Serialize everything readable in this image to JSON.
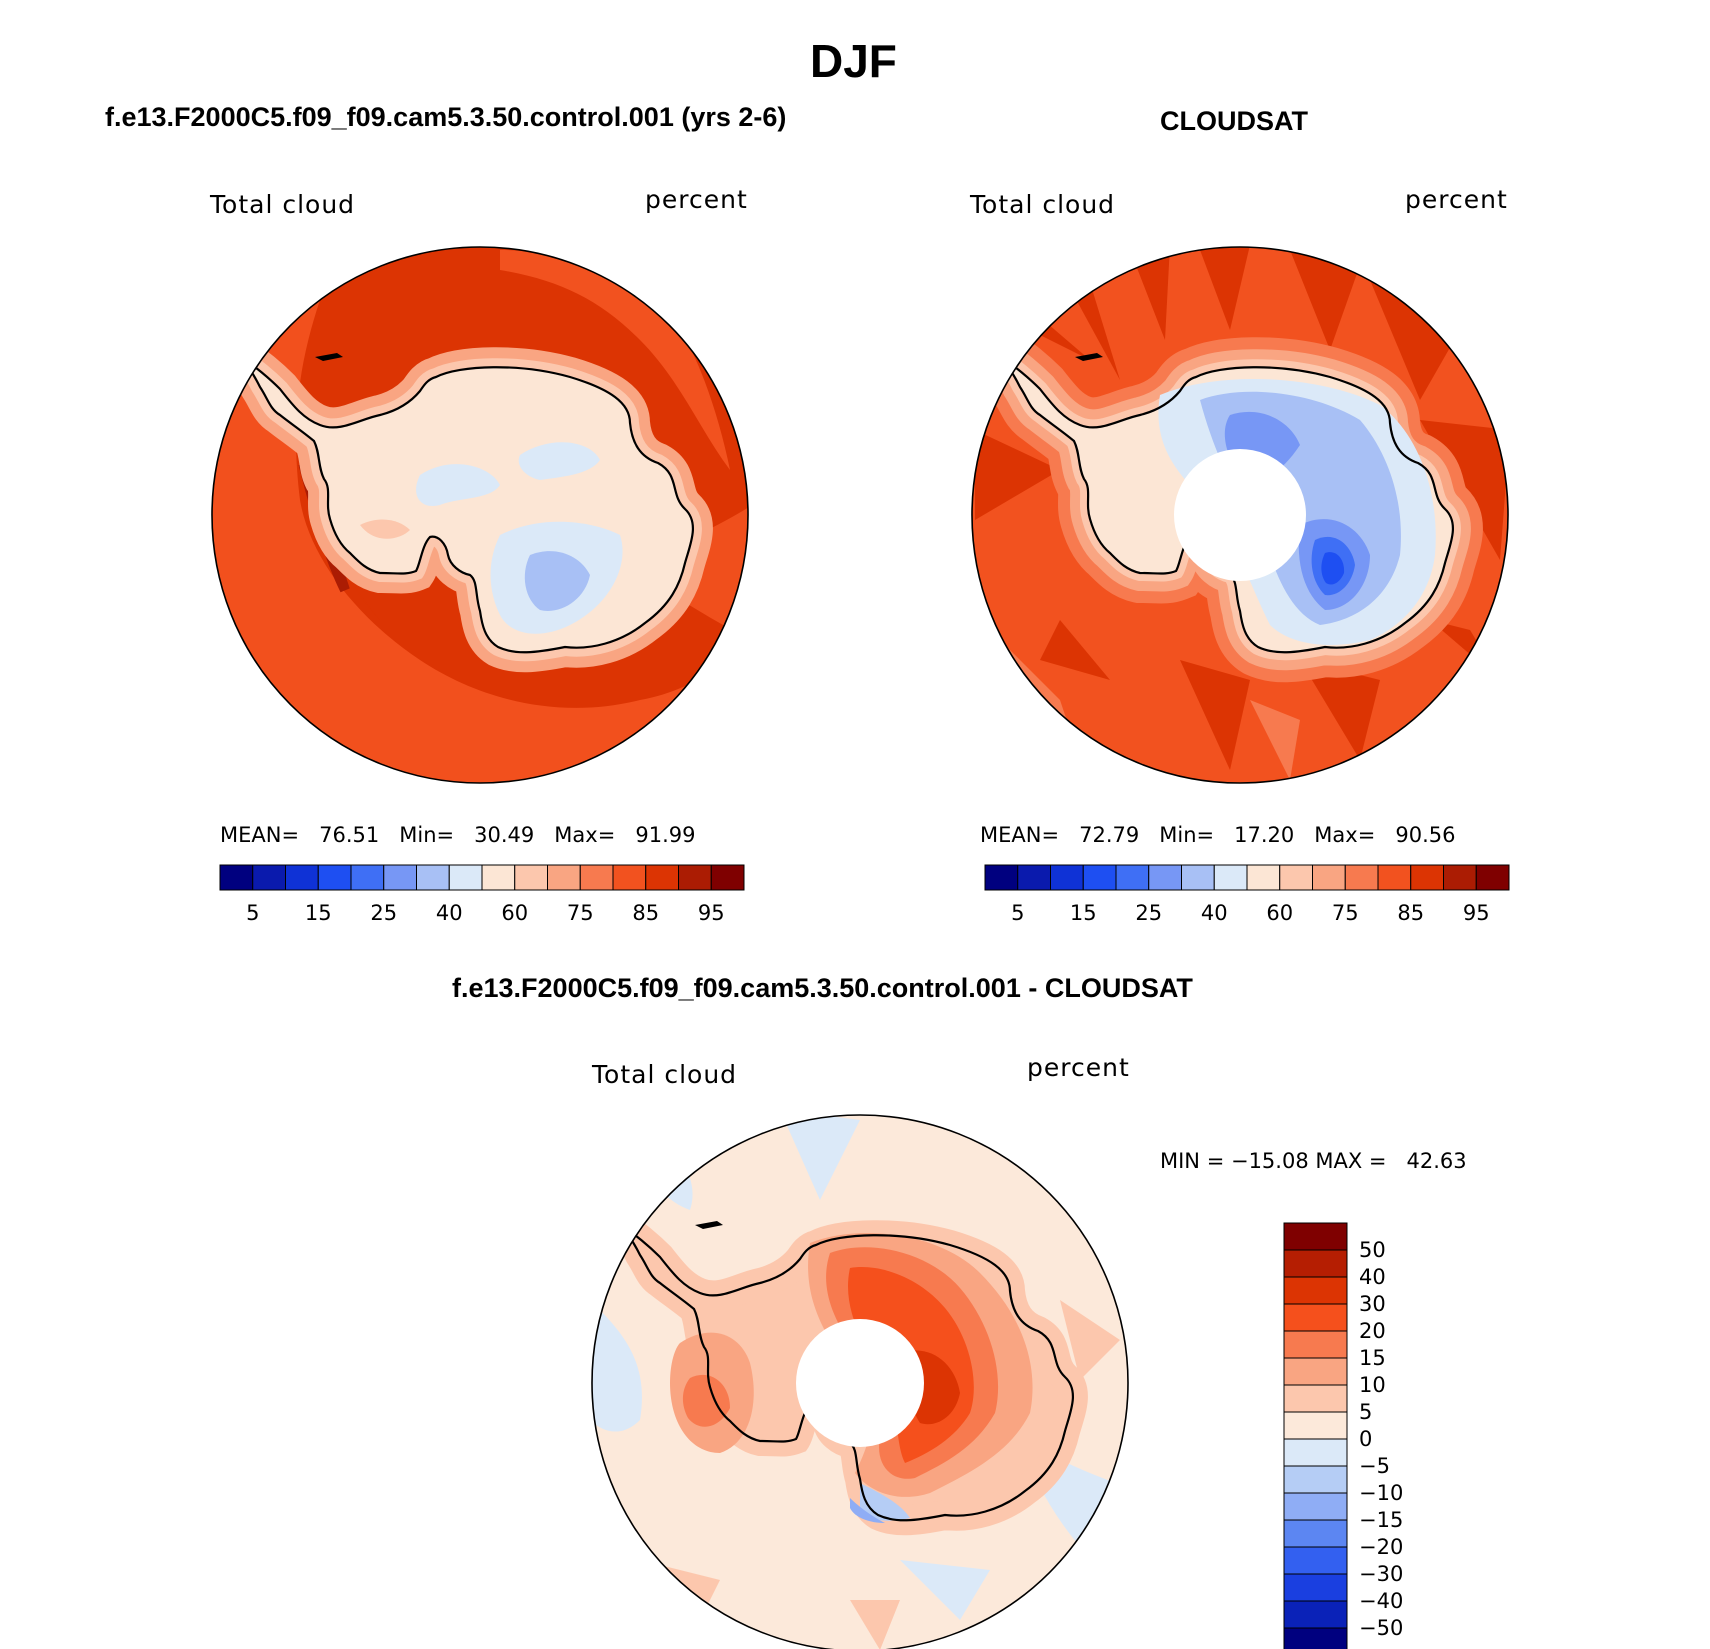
{
  "figure": {
    "title": "DJF",
    "panels": [
      {
        "id": "model",
        "title": "f.e13.F2000C5.f09_f09.cam5.3.50.control.001 (yrs 2-6)",
        "left_label": "Total cloud",
        "right_label": "percent",
        "stats": {
          "mean_label": "MEAN=",
          "mean": "76.51",
          "min_label": "Min=",
          "min": "30.49",
          "max_label": "Max=",
          "max": "91.99"
        }
      },
      {
        "id": "obs",
        "title": "CLOUDSAT",
        "left_label": "Total cloud",
        "right_label": "percent",
        "stats": {
          "mean_label": "MEAN=",
          "mean": "72.79",
          "min_label": "Min=",
          "min": "17.20",
          "max_label": "Max=",
          "max": "90.56"
        }
      },
      {
        "id": "diff",
        "title": "f.e13.F2000C5.f09_f09.cam5.3.50.control.001 - CLOUDSAT",
        "left_label": "Total cloud",
        "right_label": "percent",
        "minmax": "MIN = −15.08 MAX =   42.63"
      }
    ]
  },
  "colorbars": {
    "abs": {
      "colors": [
        "#00007f",
        "#0a1aad",
        "#0f32d6",
        "#1e4ff2",
        "#3f6ff5",
        "#7797f5",
        "#a8c0f5",
        "#dbe9f8",
        "#fce6d5",
        "#fcc7ad",
        "#f9a582",
        "#f77a4f",
        "#f2521f",
        "#dc3403",
        "#ab1c03",
        "#7f0000"
      ],
      "tick_labels": [
        "5",
        "15",
        "25",
        "40",
        "60",
        "75",
        "85",
        "95"
      ]
    },
    "diff": {
      "colors": [
        "#7f0000",
        "#b51e02",
        "#dc3403",
        "#f5501c",
        "#f77a4f",
        "#f9a582",
        "#fcc7ad",
        "#fce9da",
        "#dbe9f8",
        "#b5cdf5",
        "#8fadf5",
        "#5c86f2",
        "#3360f0",
        "#1a3fe0",
        "#0a22b8",
        "#00007f"
      ],
      "tick_labels": [
        "50",
        "40",
        "30",
        "20",
        "15",
        "10",
        "5",
        "0",
        "−5",
        "−10",
        "−15",
        "−20",
        "−30",
        "−40",
        "−50"
      ]
    }
  },
  "map_colors": {
    "model": {
      "ocean": "#dc3403",
      "ocean_light": "#f2521f",
      "ocean_dark": "#ab1c03",
      "coast_band1": "#f9a582",
      "coast_band2": "#fcc7ad",
      "interior": "#fce6d5",
      "interior_blue1": "#dbe9f8",
      "interior_blue2": "#a8c0f5"
    },
    "obs": {
      "ocean": "#f2521f",
      "ocean_dark": "#dc3403",
      "ocean_light": "#f77a4f",
      "coast_band1": "#f9a582",
      "coast_band2": "#fcc7ad",
      "interior": "#fce6d5",
      "interior_blue1": "#dbe9f8",
      "interior_blue2": "#a8c0f5",
      "interior_blue3": "#7797f5",
      "interior_blue4": "#3f6ff5",
      "interior_blue5": "#1e4ff2"
    },
    "diff": {
      "ocean": "#fce9da",
      "ocean_blue": "#dbe9f8",
      "ocean_pink": "#fcc7ad",
      "ice_band": "#f9a582",
      "ice_mid": "#f77a4f",
      "ice_core": "#f5501c",
      "ice_hot": "#dc3403",
      "ice_blue": "#b5cdf5",
      "ice_blue2": "#8fadf5"
    }
  }
}
